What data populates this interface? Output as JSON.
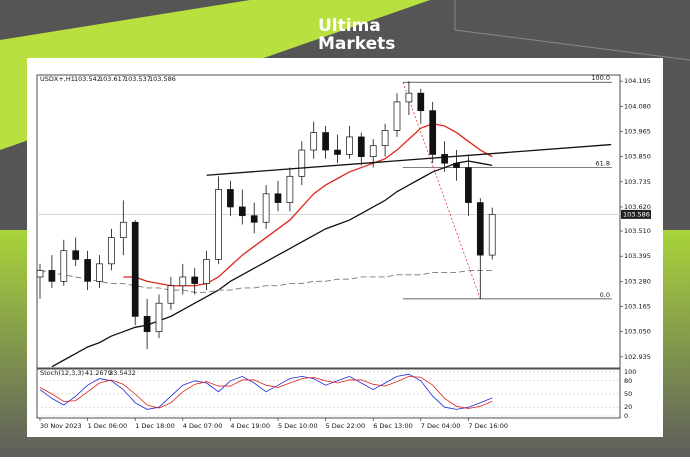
{
  "brand": {
    "line1": "Ultima",
    "line2": "Markets"
  },
  "chart_data": {
    "type": "candlestick",
    "symbol": "USDX+,H1",
    "header_values": [
      103.542,
      103.617,
      103.537,
      103.586
    ],
    "current_price": 103.586,
    "categories": [
      "30 Nov 2023",
      null,
      null,
      null,
      "1 Dec 06:00",
      null,
      null,
      null,
      "1 Dec 18:00",
      null,
      null,
      null,
      "4 Dec 07:00",
      null,
      null,
      null,
      "4 Dec 19:00",
      null,
      null,
      null,
      "5 Dec 10:00",
      null,
      null,
      null,
      "5 Dec 22:00",
      null,
      null,
      null,
      "6 Dec 13:00",
      null,
      null,
      null,
      "7 Dec 04:00",
      null,
      null,
      null,
      "7 Dec 16:00",
      null,
      null
    ],
    "open": [
      103.3,
      103.33,
      103.28,
      103.42,
      103.38,
      103.28,
      103.36,
      103.48,
      103.55,
      103.12,
      103.05,
      103.18,
      103.26,
      103.3,
      103.27,
      103.38,
      103.7,
      103.62,
      103.58,
      103.55,
      103.68,
      103.64,
      103.76,
      103.88,
      103.96,
      103.88,
      103.86,
      103.94,
      103.85,
      103.9,
      103.97,
      104.1,
      104.14,
      104.06,
      103.86,
      103.82,
      103.8,
      103.64,
      103.4
    ],
    "high": [
      103.36,
      103.4,
      103.47,
      103.48,
      103.42,
      103.4,
      103.52,
      103.65,
      103.56,
      103.2,
      103.22,
      103.3,
      103.36,
      103.34,
      103.42,
      103.76,
      103.74,
      103.7,
      103.64,
      103.72,
      103.74,
      103.8,
      103.92,
      104.01,
      103.99,
      103.95,
      103.99,
      103.96,
      103.93,
      104.0,
      104.14,
      104.195,
      104.16,
      104.1,
      103.92,
      103.88,
      103.86,
      103.66,
      103.617
    ],
    "low": [
      103.2,
      103.25,
      103.26,
      103.35,
      103.24,
      103.25,
      103.33,
      103.4,
      103.08,
      102.97,
      103.02,
      103.15,
      103.22,
      103.22,
      103.24,
      103.36,
      103.58,
      103.54,
      103.5,
      103.52,
      103.6,
      103.6,
      103.72,
      103.84,
      103.84,
      103.82,
      103.84,
      103.81,
      103.8,
      103.85,
      103.94,
      104.04,
      104.0,
      103.82,
      103.78,
      103.74,
      103.58,
      103.2,
      103.38
    ],
    "close": [
      103.33,
      103.28,
      103.42,
      103.38,
      103.28,
      103.36,
      103.48,
      103.55,
      103.12,
      103.05,
      103.18,
      103.26,
      103.3,
      103.27,
      103.38,
      103.7,
      103.62,
      103.58,
      103.55,
      103.68,
      103.64,
      103.76,
      103.88,
      103.96,
      103.88,
      103.86,
      103.94,
      103.85,
      103.9,
      103.97,
      104.1,
      104.14,
      104.06,
      103.86,
      103.82,
      103.8,
      103.64,
      103.4,
      103.586
    ],
    "moving_averages": [
      {
        "color": "#e0261b",
        "dash": false,
        "values": [
          null,
          null,
          null,
          null,
          null,
          null,
          null,
          103.3,
          103.3,
          103.28,
          103.27,
          103.26,
          103.26,
          103.26,
          103.27,
          103.3,
          103.35,
          103.4,
          103.44,
          103.48,
          103.52,
          103.56,
          103.62,
          103.68,
          103.72,
          103.75,
          103.78,
          103.8,
          103.82,
          103.84,
          103.88,
          103.93,
          103.98,
          104.0,
          103.99,
          103.96,
          103.92,
          103.88,
          103.85
        ]
      },
      {
        "color": "#111111",
        "dash": false,
        "values": [
          null,
          102.89,
          102.92,
          102.95,
          102.98,
          103.0,
          103.03,
          103.05,
          103.07,
          103.08,
          103.1,
          103.12,
          103.15,
          103.18,
          103.21,
          103.24,
          103.28,
          103.31,
          103.34,
          103.37,
          103.4,
          103.43,
          103.46,
          103.49,
          103.52,
          103.54,
          103.56,
          103.59,
          103.62,
          103.65,
          103.69,
          103.72,
          103.75,
          103.78,
          103.8,
          103.82,
          103.83,
          103.82,
          103.81
        ]
      },
      {
        "color": "#777777",
        "dash": true,
        "values": [
          103.33,
          103.32,
          103.31,
          103.3,
          103.29,
          103.28,
          103.27,
          103.27,
          103.26,
          103.25,
          103.25,
          103.24,
          103.24,
          103.23,
          103.23,
          103.24,
          103.24,
          103.25,
          103.25,
          103.26,
          103.26,
          103.27,
          103.27,
          103.28,
          103.28,
          103.29,
          103.29,
          103.3,
          103.3,
          103.3,
          103.31,
          103.31,
          103.31,
          103.32,
          103.32,
          103.32,
          103.33,
          103.33,
          103.33
        ]
      }
    ],
    "trendline": {
      "x": [
        14,
        48
      ],
      "y": [
        103.765,
        103.905
      ]
    },
    "fib_line": {
      "x": [
        30.5,
        37
      ],
      "y": [
        104.19,
        103.2
      ]
    },
    "fib_levels": [
      {
        "ratio": "100.0",
        "price": 104.19
      },
      {
        "ratio": "61.8",
        "price": 103.8
      },
      {
        "ratio": "0.0",
        "price": 103.2
      }
    ],
    "xlim": [
      -0.5,
      48.5
    ],
    "ylim": [
      102.884,
      104.223
    ],
    "yticks": [
      104.195,
      {
        "value": 104.08,
        "label": "104.080"
      },
      103.965,
      {
        "value": 103.85,
        "label": "103.850"
      },
      103.735,
      {
        "value": 103.62,
        "label": "103.620"
      },
      {
        "value": 103.51,
        "label": "103.510"
      },
      103.395,
      {
        "value": 103.28,
        "label": "103.280"
      },
      103.165,
      {
        "value": 103.05,
        "label": "103.050"
      },
      102.935
    ],
    "stochastic": {
      "label": "Stoch(12,3,3)",
      "readings": [
        41.2679,
        33.5432
      ],
      "ylim": [
        0,
        100
      ],
      "yticks": [
        100,
        80,
        50,
        20,
        0
      ],
      "series": [
        {
          "color": "#1f2bd6",
          "values": [
            60,
            40,
            25,
            45,
            70,
            85,
            80,
            60,
            30,
            15,
            20,
            45,
            70,
            80,
            75,
            55,
            80,
            90,
            75,
            55,
            70,
            85,
            90,
            85,
            70,
            80,
            90,
            75,
            60,
            75,
            90,
            95,
            80,
            45,
            20,
            15,
            20,
            30,
            41.27
          ]
        },
        {
          "color": "#e0261b",
          "values": [
            65,
            50,
            33,
            35,
            55,
            75,
            82,
            72,
            50,
            25,
            18,
            30,
            55,
            72,
            78,
            68,
            68,
            82,
            82,
            70,
            65,
            75,
            85,
            88,
            80,
            75,
            82,
            82,
            72,
            68,
            78,
            90,
            88,
            70,
            40,
            22,
            17,
            22,
            33.54
          ]
        }
      ]
    }
  }
}
